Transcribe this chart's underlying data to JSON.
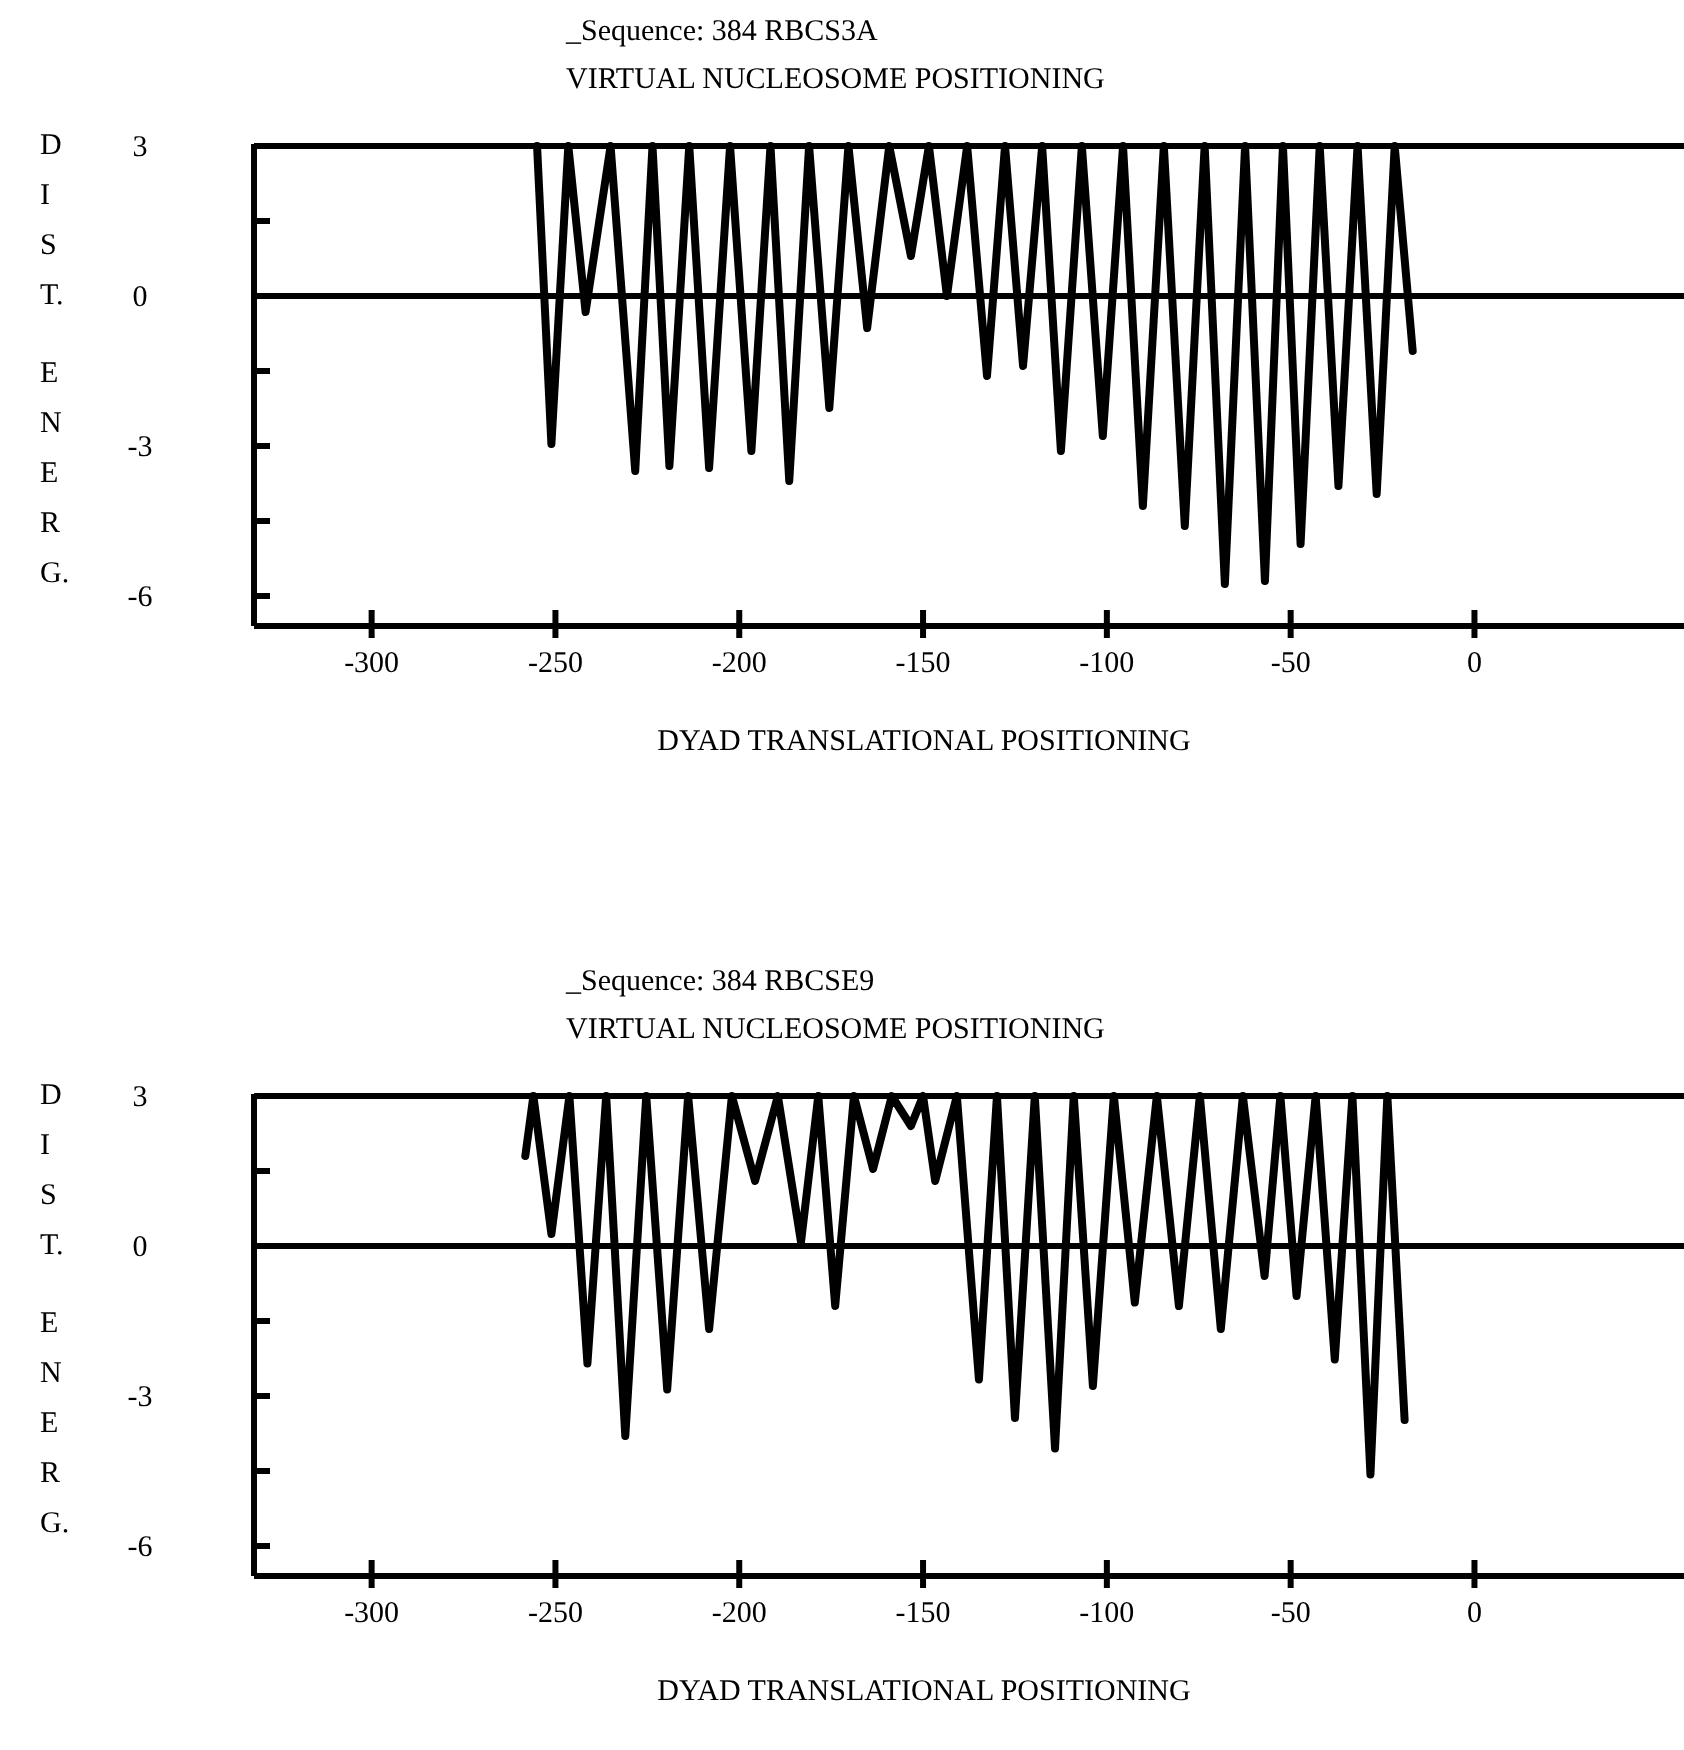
{
  "chart_data": [
    {
      "type": "line",
      "title": "_Sequence: 384 RBCS3A",
      "subtitle": "VIRTUAL NUCLEOSOME POSITIONING",
      "xlabel": "DYAD TRANSLATIONAL POSITIONING",
      "ylabel": "DIST. ENERG.",
      "xlim": [
        -332,
        57
      ],
      "ylim": [
        -6.6,
        3
      ],
      "xticks": [
        -300,
        -250,
        -200,
        -150,
        -100,
        -50,
        0
      ],
      "yticks": [
        3,
        {
          "value": 1.5,
          "label": null
        },
        0,
        {
          "value": -1.5,
          "label": null
        },
        -3,
        {
          "value": -4.5,
          "label": null
        },
        -6
      ],
      "grid": false,
      "line_style": "solid",
      "ref_lines": [
        {
          "axis": "y",
          "value": 0,
          "label": null,
          "color": "#000000"
        }
      ],
      "series": [
        {
          "color": "#000000",
          "x": [
            -255,
            -251.1,
            -246.5,
            -241.8,
            -235,
            -228.3,
            -223.6,
            -219,
            -213.6,
            -208.2,
            -202.5,
            -196.7,
            -191.5,
            -186.4,
            -181,
            -175.5,
            -170.3,
            -165.2,
            -159.2,
            -153.3,
            -148.4,
            -143.5,
            -138,
            -132.6,
            -127.7,
            -122.8,
            -117.6,
            -112.5,
            -106.8,
            -101.1,
            -95.6,
            -90.2,
            -84.5,
            -78.8,
            -73.4,
            -67.9,
            -62.4,
            -57,
            -52.1,
            -47.3,
            -42.1,
            -37,
            -31.8,
            -26.6,
            -21.7,
            -16.8
          ],
          "values": [
            3,
            -2.96,
            3,
            -0.32,
            3,
            -3.5,
            3,
            -3.4,
            3,
            -3.44,
            3,
            -3.1,
            3,
            -3.7,
            3,
            -2.24,
            3,
            -0.64,
            3,
            0.8,
            3,
            0,
            3,
            -1.6,
            3,
            -1.4,
            3,
            -3.1,
            3,
            -2.8,
            3,
            -4.2,
            3,
            -4.6,
            3,
            -5.76,
            3,
            -5.7,
            3,
            -4.96,
            3,
            -3.8,
            3,
            -3.96,
            3,
            -1.1
          ]
        }
      ]
    },
    {
      "type": "line",
      "title": "_Sequence: 384 RBCSE9",
      "subtitle": "VIRTUAL NUCLEOSOME POSITIONING",
      "xlabel": "DYAD TRANSLATIONAL POSITIONING",
      "ylabel": "DIST. ENERG.",
      "xlim": [
        -332,
        57
      ],
      "ylim": [
        -6.6,
        3
      ],
      "xticks": [
        -300,
        -250,
        -200,
        -150,
        -100,
        -50,
        0
      ],
      "yticks": [
        3,
        {
          "value": 1.5,
          "label": null
        },
        0,
        {
          "value": -1.5,
          "label": null
        },
        -3,
        {
          "value": -4.5,
          "label": null
        },
        -6
      ],
      "grid": false,
      "line_style": "solid",
      "ref_lines": [
        {
          "axis": "y",
          "value": 0,
          "label": null,
          "color": "#000000"
        }
      ],
      "series": [
        {
          "color": "#000000",
          "x": [
            -258.2,
            -256,
            -251.1,
            -246.2,
            -241.3,
            -236.2,
            -231,
            -225.3,
            -219.6,
            -213.9,
            -208.2,
            -202,
            -195.7,
            -189.5,
            -183.2,
            -178.5,
            -173.9,
            -168.8,
            -163.6,
            -158.5,
            -153.3,
            -150,
            -146.7,
            -140.8,
            -134.8,
            -129.9,
            -125,
            -119.6,
            -114.1,
            -109,
            -103.8,
            -98.1,
            -92.4,
            -86.4,
            -80.4,
            -74.7,
            -69,
            -63,
            -57.1,
            -52.8,
            -48.4,
            -43.2,
            -38,
            -33.2,
            -28.3,
            -23.7,
            -19
          ],
          "values": [
            1.8,
            3,
            0.24,
            3,
            -2.35,
            3,
            -3.8,
            3,
            -2.87,
            3,
            -1.66,
            3,
            1.3,
            3,
            0.08,
            3,
            -1.2,
            3,
            1.54,
            3,
            2.4,
            3,
            1.3,
            3,
            -2.67,
            3,
            -3.44,
            3,
            -4.05,
            3,
            -2.8,
            3,
            -1.13,
            3,
            -1.2,
            3,
            -1.66,
            3,
            -0.6,
            3,
            -1.0,
            3,
            -2.27,
            3,
            -4.57,
            3,
            -3.48
          ]
        }
      ]
    }
  ]
}
